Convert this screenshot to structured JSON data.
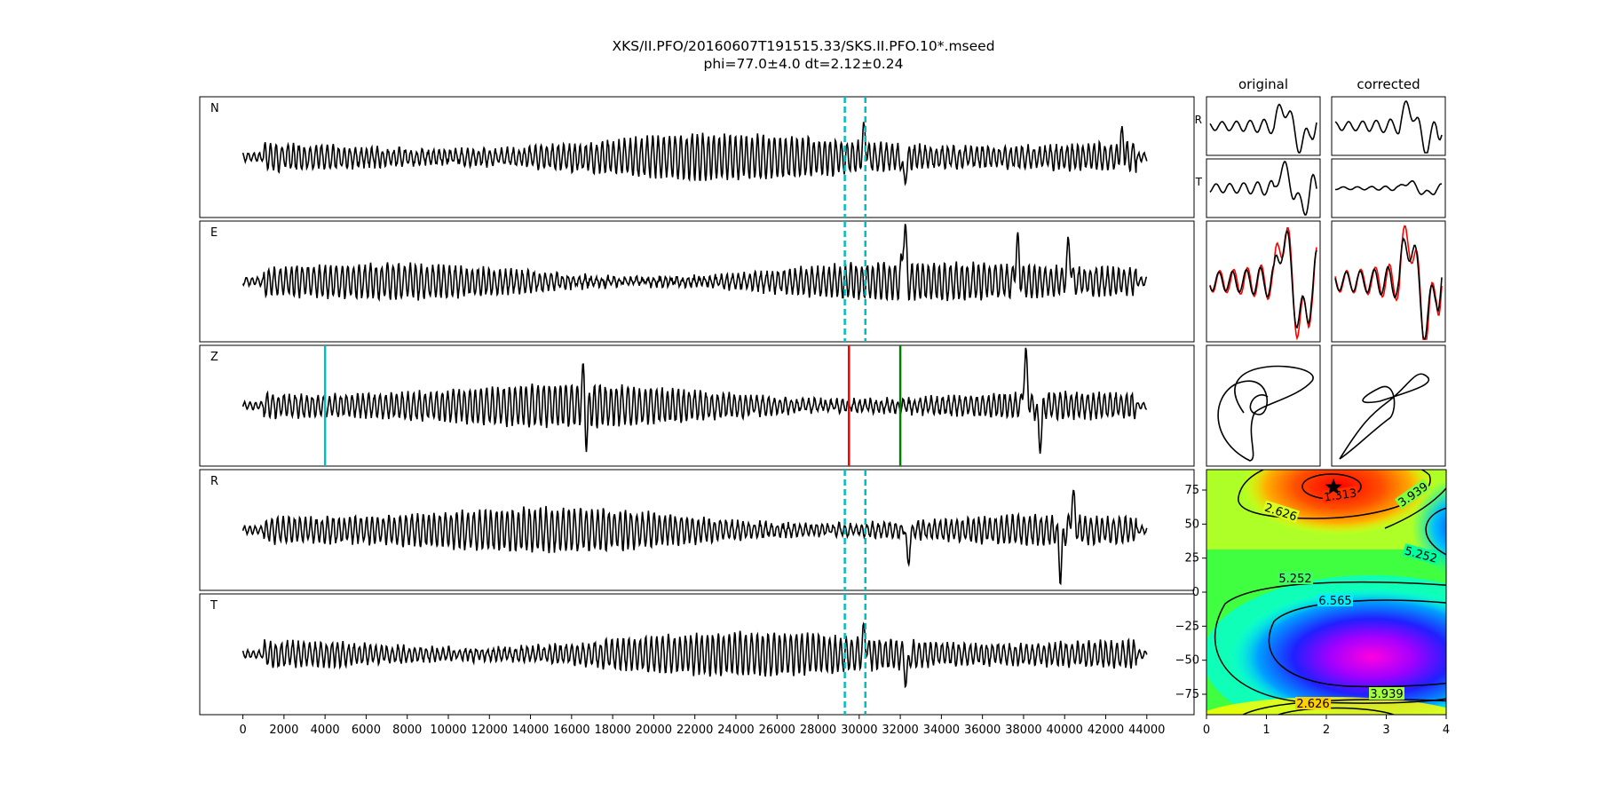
{
  "title_line1": "XKS/II.PFO/20160607T191515.33/SKS.II.PFO.10*.mseed",
  "title_line2": "phi=77.0±4.0 dt=2.12±0.24",
  "col_titles": [
    "original",
    "corrected"
  ],
  "small_row_labels": [
    "R",
    "T"
  ],
  "chart_data": [
    {
      "type": "line",
      "title": "",
      "traces": [
        {
          "label": "N",
          "seed": 3,
          "amp": 1.0,
          "spikes": [
            [
              30250,
              0.55
            ],
            [
              32200,
              -0.6
            ],
            [
              42800,
              0.5
            ]
          ]
        },
        {
          "label": "E",
          "seed": 7,
          "amp": 1.0,
          "spikes": [
            [
              32200,
              1.4
            ],
            [
              37700,
              0.9
            ],
            [
              40200,
              0.9
            ]
          ]
        },
        {
          "label": "Z",
          "seed": 11,
          "amp": 0.95,
          "spikes": [
            [
              16600,
              1.0
            ],
            [
              16700,
              -1.0
            ],
            [
              38100,
              1.2
            ],
            [
              38800,
              -0.9
            ]
          ]
        },
        {
          "label": "R",
          "seed": 5,
          "amp": 1.0,
          "spikes": [
            [
              32300,
              0.65
            ],
            [
              32350,
              -1.3
            ],
            [
              40400,
              0.8
            ],
            [
              39800,
              -1.0
            ]
          ]
        },
        {
          "label": "T",
          "seed": 9,
          "amp": 0.95,
          "spikes": [
            [
              30250,
              0.5
            ],
            [
              32300,
              -0.55
            ]
          ]
        }
      ],
      "xlim": [
        -2100,
        46300
      ],
      "xticks": [
        0,
        2000,
        4000,
        6000,
        8000,
        10000,
        12000,
        14000,
        16000,
        18000,
        20000,
        22000,
        24000,
        26000,
        28000,
        30000,
        32000,
        34000,
        36000,
        38000,
        40000,
        42000,
        44000
      ],
      "data_x_range": [
        0,
        44000
      ],
      "window_lines_x": [
        29300,
        30300
      ],
      "window_line_color": "#00bfbf",
      "z_markers": [
        {
          "x": 4000,
          "color": "#00bfbf"
        },
        {
          "x": 29500,
          "color": "#ff0000"
        },
        {
          "x": 32000,
          "color": "#008000"
        }
      ],
      "grid": false
    },
    {
      "type": "heatmap",
      "title": "",
      "xlim": [
        0,
        4
      ],
      "ylim": [
        -90,
        90
      ],
      "xticks": [
        0,
        1,
        2,
        3,
        4
      ],
      "yticks": [
        75,
        50,
        25,
        0,
        -25,
        -50,
        -75
      ],
      "colormap": "gist_rainbow",
      "contour_labels": [
        "1.313",
        "2.626",
        "3.939",
        "5.252",
        "6.565",
        "5.252",
        "3.939",
        "2.626"
      ],
      "best_fit": {
        "dt": 2.12,
        "phi": 77.0
      }
    }
  ],
  "colors": {
    "trace": "#000000",
    "red_trace": "#ff0000"
  }
}
